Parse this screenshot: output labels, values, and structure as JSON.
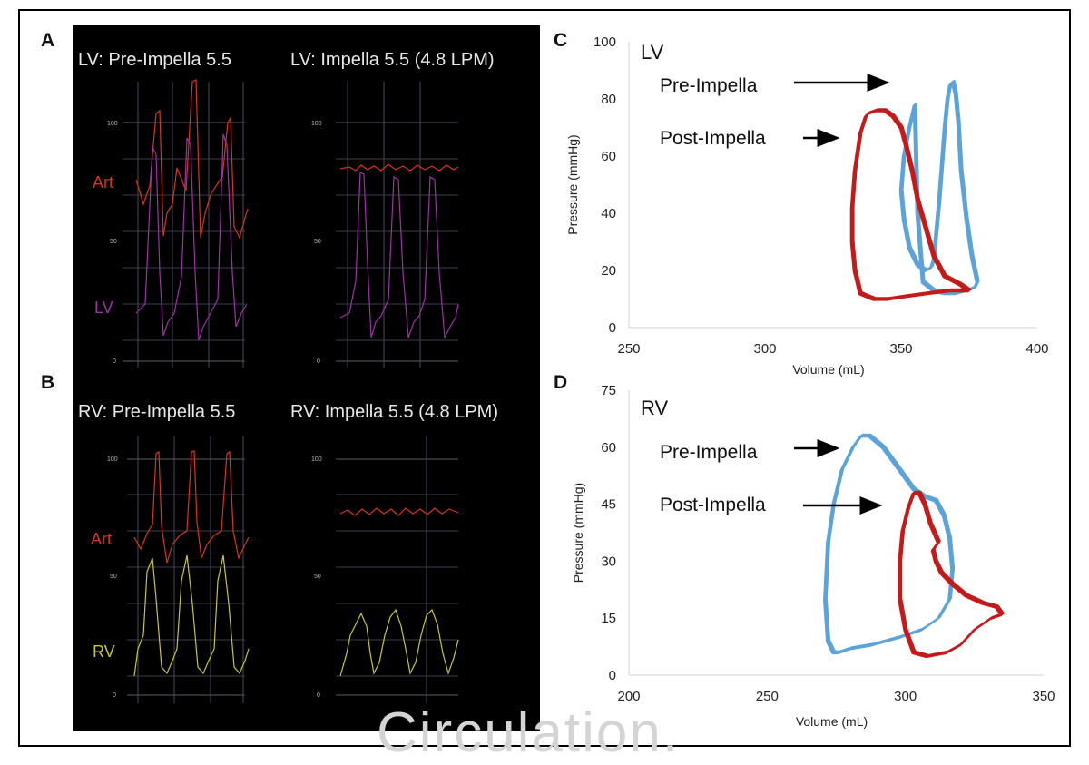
{
  "watermark": "Circulation.",
  "panel_letters": {
    "a": "A",
    "b": "B",
    "c": "C",
    "d": "D"
  },
  "colors": {
    "pre": "#5ba3d9",
    "post": "#c41a1a",
    "art": "#d8341e",
    "lv_trace": "#a030a8",
    "rv_trace": "#c9c82a",
    "grid": "#5a5a6e"
  },
  "traces": {
    "a_left": {
      "title": "LV: Pre-Impella 5.5",
      "label_art": "Art",
      "label_ventricle": "LV",
      "ticks": [
        "100",
        "50",
        "0"
      ]
    },
    "a_right": {
      "title": "LV: Impella 5.5 (4.8 LPM)",
      "ticks": [
        "100",
        "50",
        "0"
      ]
    },
    "b_left": {
      "title": "RV: Pre-Impella 5.5",
      "label_art": "Art",
      "label_ventricle": "RV",
      "ticks": [
        "100",
        "50",
        "0"
      ]
    },
    "b_right": {
      "title": "RV: Impella 5.5 (4.8 LPM)",
      "ticks": [
        "100",
        "50",
        "0"
      ]
    }
  },
  "chart_data": [
    {
      "id": "C",
      "type": "line",
      "title": "LV",
      "xlabel": "Volume (mL)",
      "ylabel": "Pressure (mmHg)",
      "xlim": [
        250,
        400
      ],
      "ylim": [
        0,
        100
      ],
      "xticks": [
        250,
        300,
        350,
        400
      ],
      "yticks": [
        0,
        20,
        40,
        60,
        80,
        100
      ],
      "annotations": [
        "Pre-Impella",
        "Post-Impella"
      ],
      "series": [
        {
          "name": "Pre-Impella",
          "x": [
            355,
            353,
            351,
            350,
            351,
            353,
            356,
            359,
            361,
            362,
            364,
            366,
            367,
            368,
            369,
            370,
            371,
            372,
            374,
            376,
            378,
            377,
            374,
            370,
            366,
            362,
            358,
            356,
            355
          ],
          "y": [
            78,
            70,
            60,
            48,
            38,
            28,
            22,
            20,
            21,
            24,
            45,
            70,
            80,
            85,
            86,
            82,
            72,
            55,
            38,
            25,
            16,
            14,
            13,
            12,
            12,
            13,
            16,
            40,
            78
          ]
        },
        {
          "name": "Post-Impella",
          "x": [
            337,
            335,
            333,
            332,
            332,
            333,
            335,
            340,
            345,
            352,
            360,
            368,
            375,
            372,
            366,
            362,
            359,
            356,
            354,
            352,
            350,
            347,
            344,
            341,
            338,
            337
          ],
          "y": [
            74,
            68,
            55,
            42,
            30,
            20,
            12,
            10,
            10,
            11,
            12,
            13,
            13,
            15,
            18,
            25,
            35,
            45,
            55,
            63,
            70,
            74,
            76,
            76,
            75,
            74
          ]
        }
      ]
    },
    {
      "id": "D",
      "type": "line",
      "title": "RV",
      "xlabel": "Volume (mL)",
      "ylabel": "Pressure (mmHg)",
      "xlim": [
        200,
        350
      ],
      "ylim": [
        0,
        75
      ],
      "xticks": [
        200,
        250,
        300,
        350
      ],
      "yticks": [
        0,
        15,
        30,
        45,
        60,
        75
      ],
      "annotations": [
        "Pre-Impella",
        "Post-Impella"
      ],
      "series": [
        {
          "name": "Pre-Impella",
          "x": [
            284,
            281,
            277,
            274,
            272,
            271,
            272,
            274,
            276,
            280,
            288,
            298,
            306,
            312,
            316,
            317,
            316,
            314,
            311,
            307,
            303,
            298,
            292,
            287,
            284
          ],
          "y": [
            63,
            60,
            54,
            45,
            35,
            20,
            9,
            6,
            6,
            7,
            8,
            10,
            12,
            15,
            20,
            28,
            36,
            42,
            46,
            47,
            49,
            54,
            60,
            63,
            63
          ]
        },
        {
          "name": "Post-Impella",
          "x": [
            303,
            301,
            299,
            298,
            298,
            300,
            303,
            308,
            315,
            320,
            325,
            331,
            335,
            333,
            328,
            322,
            317,
            313,
            311,
            310,
            312,
            309,
            307,
            305,
            303
          ],
          "y": [
            48,
            44,
            38,
            30,
            20,
            12,
            6,
            5,
            6,
            8,
            12,
            15,
            16,
            18,
            19,
            21,
            24,
            27,
            30,
            33,
            35,
            40,
            45,
            48,
            48
          ]
        }
      ]
    }
  ]
}
